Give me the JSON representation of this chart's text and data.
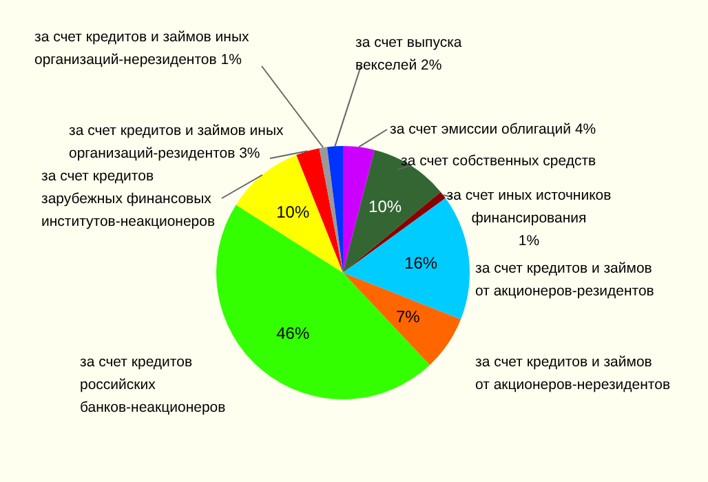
{
  "chart_data": {
    "type": "pie",
    "categories": [
      "за счет эмиссии облигаций",
      "за счет собственных средств",
      "за счет иных источников финансирования",
      "за счет кредитов и займов от акционеров-резидентов",
      "за счет кредитов и займов от акционеров-нерезидентов",
      "за счет кредитов российских банков-неакционеров",
      "за счет кредитов зарубежных финансовых институтов-неакционеров",
      "за счет кредитов и займов иных организаций-резидентов",
      "за счет кредитов и займов иных организаций-нерезидентов",
      "за счет выпуска векселей"
    ],
    "values": [
      4,
      10,
      1,
      16,
      7,
      46,
      10,
      3,
      1,
      2
    ],
    "value_labels": [
      "4%",
      "10%",
      "1%",
      "16%",
      "7%",
      "46%",
      "10%",
      "3%",
      "1%",
      "2%"
    ],
    "colors": [
      "#cc00ff",
      "#336633",
      "#880000",
      "#00ccff",
      "#ff6600",
      "#33ff00",
      "#ffff00",
      "#ff0000",
      "#999999",
      "#0033ff"
    ]
  }
}
